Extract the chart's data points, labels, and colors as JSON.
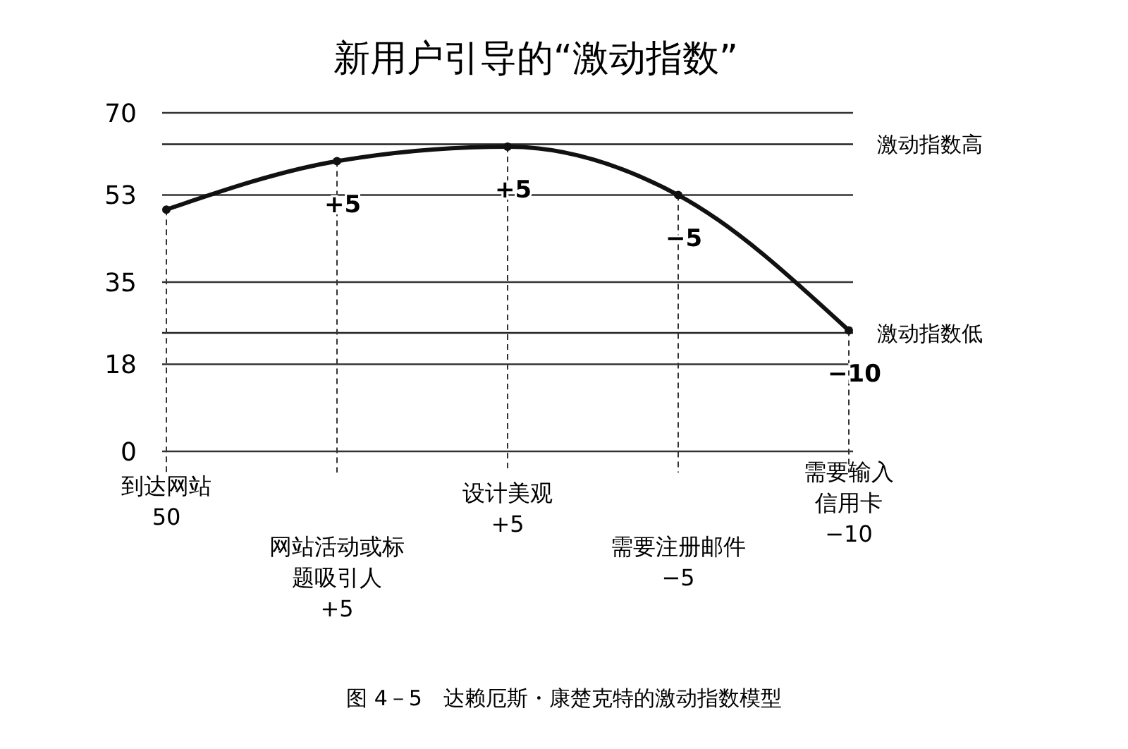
{
  "chart_data": {
    "type": "line",
    "title": "新用户引导的“激动指数”",
    "categories": [
      "到达网站\n50",
      "网站活动或标题吸引人\n+5",
      "设计美观\n+5",
      "需要注册邮件\n−5",
      "需要输入信用卡\n−10"
    ],
    "series": [
      {
        "color": "#111111",
        "values": [
          50,
          60,
          63,
          53,
          25
        ]
      }
    ],
    "ylim": [
      0,
      70
    ],
    "yticks": [
      0,
      18,
      35,
      53,
      70
    ],
    "grid": true,
    "marker": "circle",
    "line_style": "solid",
    "ref_lines": [
      {
        "axis": "y",
        "value": 63.5,
        "label": "激动指数高",
        "color": "#222222"
      },
      {
        "axis": "y",
        "value": 24.5,
        "label": "激动指数低",
        "color": "#222222"
      }
    ],
    "annotations": [
      {
        "text": "+5",
        "x": "网站活动或标题吸引人\n+5",
        "y": 60
      },
      {
        "text": "+5",
        "x": "设计美观\n+5",
        "y": 63
      },
      {
        "text": "−5",
        "x": "需要注册邮件\n−5",
        "y": 53
      },
      {
        "text": "−10",
        "x": "需要输入信用卡\n−10",
        "y": 25
      },
      "图 4－5　达赖厄斯・康楚克特的激动指数模型"
    ]
  }
}
